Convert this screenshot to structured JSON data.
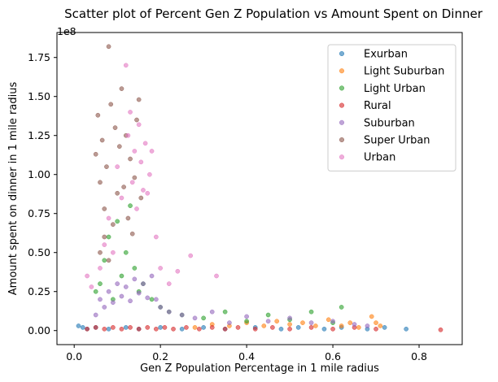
{
  "chart_data": {
    "type": "scatter",
    "title": "Scatter plot of Percent Gen Z Population vs Amount Spent on Dinner",
    "xlabel": "Gen Z Population Percentage in 1 mile radius",
    "ylabel": "Amount spent on dinner in 1 mile radius",
    "y_offset_text": "1e8",
    "xlim": [
      -0.04,
      0.9
    ],
    "ylim": [
      -0.09,
      1.91
    ],
    "y_unit_multiplier": 100000000,
    "xticks": [
      0.0,
      0.2,
      0.4,
      0.6,
      0.8
    ],
    "xtick_labels": [
      "0.0",
      "0.2",
      "0.4",
      "0.6",
      "0.8"
    ],
    "yticks": [
      0.0,
      0.25,
      0.5,
      0.75,
      1.0,
      1.25,
      1.5,
      1.75
    ],
    "ytick_labels": [
      "0.00",
      "0.25",
      "0.50",
      "0.75",
      "1.00",
      "1.25",
      "1.50",
      "1.75"
    ],
    "grid": false,
    "legend_position": "top-right",
    "series": [
      {
        "name": "Exurban",
        "color": "#1f77b4",
        "points": [
          [
            0.01,
            0.03
          ],
          [
            0.02,
            0.02
          ],
          [
            0.03,
            0.01
          ],
          [
            0.05,
            0.02
          ],
          [
            0.08,
            0.01
          ],
          [
            0.12,
            0.02
          ],
          [
            0.15,
            0.01
          ],
          [
            0.2,
            0.02
          ],
          [
            0.25,
            0.01
          ],
          [
            0.3,
            0.02
          ],
          [
            0.35,
            0.01
          ],
          [
            0.42,
            0.02
          ],
          [
            0.48,
            0.01
          ],
          [
            0.52,
            0.02
          ],
          [
            0.58,
            0.01
          ],
          [
            0.62,
            0.02
          ],
          [
            0.68,
            0.01
          ],
          [
            0.72,
            0.02
          ],
          [
            0.77,
            0.01
          ]
        ]
      },
      {
        "name": "Light Suburban",
        "color": "#ff7f0e",
        "points": [
          [
            0.28,
            0.02
          ],
          [
            0.32,
            0.04
          ],
          [
            0.36,
            0.03
          ],
          [
            0.4,
            0.05
          ],
          [
            0.44,
            0.03
          ],
          [
            0.47,
            0.06
          ],
          [
            0.5,
            0.04
          ],
          [
            0.53,
            0.05
          ],
          [
            0.56,
            0.03
          ],
          [
            0.59,
            0.07
          ],
          [
            0.62,
            0.03
          ],
          [
            0.64,
            0.05
          ],
          [
            0.66,
            0.02
          ],
          [
            0.69,
            0.09
          ],
          [
            0.7,
            0.05
          ],
          [
            0.71,
            0.03
          ]
        ]
      },
      {
        "name": "Light Urban",
        "color": "#2ca02c",
        "points": [
          [
            0.05,
            0.25
          ],
          [
            0.06,
            0.3
          ],
          [
            0.07,
            0.45
          ],
          [
            0.08,
            0.6
          ],
          [
            0.09,
            0.2
          ],
          [
            0.1,
            0.7
          ],
          [
            0.11,
            0.35
          ],
          [
            0.12,
            0.5
          ],
          [
            0.13,
            0.8
          ],
          [
            0.14,
            0.4
          ],
          [
            0.15,
            0.25
          ],
          [
            0.16,
            0.3
          ],
          [
            0.18,
            0.2
          ],
          [
            0.2,
            0.15
          ],
          [
            0.22,
            0.12
          ],
          [
            0.25,
            0.1
          ],
          [
            0.3,
            0.08
          ],
          [
            0.35,
            0.12
          ],
          [
            0.4,
            0.06
          ],
          [
            0.45,
            0.1
          ],
          [
            0.5,
            0.07
          ],
          [
            0.55,
            0.12
          ],
          [
            0.6,
            0.05
          ],
          [
            0.62,
            0.15
          ]
        ]
      },
      {
        "name": "Rural",
        "color": "#d62728",
        "points": [
          [
            0.03,
            0.01
          ],
          [
            0.05,
            0.02
          ],
          [
            0.07,
            0.01
          ],
          [
            0.09,
            0.02
          ],
          [
            0.11,
            0.01
          ],
          [
            0.13,
            0.02
          ],
          [
            0.15,
            0.01
          ],
          [
            0.17,
            0.02
          ],
          [
            0.19,
            0.01
          ],
          [
            0.21,
            0.02
          ],
          [
            0.23,
            0.01
          ],
          [
            0.26,
            0.02
          ],
          [
            0.29,
            0.01
          ],
          [
            0.32,
            0.02
          ],
          [
            0.35,
            0.01
          ],
          [
            0.38,
            0.02
          ],
          [
            0.42,
            0.01
          ],
          [
            0.46,
            0.02
          ],
          [
            0.5,
            0.01
          ],
          [
            0.55,
            0.02
          ],
          [
            0.6,
            0.01
          ],
          [
            0.65,
            0.02
          ],
          [
            0.7,
            0.01
          ],
          [
            0.85,
            0.005
          ]
        ]
      },
      {
        "name": "Suburban",
        "color": "#9467bd",
        "points": [
          [
            0.05,
            0.1
          ],
          [
            0.06,
            0.2
          ],
          [
            0.07,
            0.15
          ],
          [
            0.08,
            0.25
          ],
          [
            0.09,
            0.18
          ],
          [
            0.1,
            0.3
          ],
          [
            0.11,
            0.22
          ],
          [
            0.12,
            0.28
          ],
          [
            0.13,
            0.19
          ],
          [
            0.14,
            0.33
          ],
          [
            0.15,
            0.24
          ],
          [
            0.16,
            0.3
          ],
          [
            0.17,
            0.21
          ],
          [
            0.18,
            0.35
          ],
          [
            0.19,
            0.2
          ],
          [
            0.2,
            0.15
          ],
          [
            0.22,
            0.12
          ],
          [
            0.25,
            0.1
          ],
          [
            0.28,
            0.08
          ],
          [
            0.32,
            0.12
          ],
          [
            0.36,
            0.05
          ],
          [
            0.4,
            0.09
          ],
          [
            0.45,
            0.06
          ],
          [
            0.5,
            0.08
          ],
          [
            0.55,
            0.05
          ],
          [
            0.6,
            0.06
          ],
          [
            0.65,
            0.04
          ],
          [
            0.68,
            0.03
          ]
        ]
      },
      {
        "name": "Super Urban",
        "color": "#8c564b",
        "points": [
          [
            0.05,
            1.13
          ],
          [
            0.055,
            1.38
          ],
          [
            0.06,
            0.95
          ],
          [
            0.065,
            1.22
          ],
          [
            0.07,
            0.78
          ],
          [
            0.075,
            1.05
          ],
          [
            0.08,
            1.82
          ],
          [
            0.085,
            1.45
          ],
          [
            0.09,
            0.68
          ],
          [
            0.095,
            1.3
          ],
          [
            0.1,
            0.88
          ],
          [
            0.105,
            1.18
          ],
          [
            0.11,
            1.55
          ],
          [
            0.115,
            0.92
          ],
          [
            0.12,
            1.25
          ],
          [
            0.125,
            0.72
          ],
          [
            0.13,
            1.1
          ],
          [
            0.135,
            0.62
          ],
          [
            0.14,
            0.98
          ],
          [
            0.145,
            1.35
          ],
          [
            0.15,
            1.48
          ],
          [
            0.155,
            0.85
          ],
          [
            0.06,
            0.5
          ],
          [
            0.07,
            0.6
          ],
          [
            0.08,
            0.45
          ]
        ]
      },
      {
        "name": "Urban",
        "color": "#e377c2",
        "points": [
          [
            0.06,
            0.4
          ],
          [
            0.07,
            0.55
          ],
          [
            0.08,
            0.72
          ],
          [
            0.09,
            0.5
          ],
          [
            0.1,
            1.05
          ],
          [
            0.11,
            0.85
          ],
          [
            0.12,
            1.7
          ],
          [
            0.125,
            1.25
          ],
          [
            0.13,
            1.4
          ],
          [
            0.135,
            0.95
          ],
          [
            0.14,
            1.15
          ],
          [
            0.145,
            0.78
          ],
          [
            0.15,
            1.32
          ],
          [
            0.155,
            1.08
          ],
          [
            0.16,
            0.9
          ],
          [
            0.165,
            1.2
          ],
          [
            0.17,
            0.88
          ],
          [
            0.175,
            1.0
          ],
          [
            0.18,
            1.15
          ],
          [
            0.19,
            0.6
          ],
          [
            0.2,
            0.4
          ],
          [
            0.22,
            0.3
          ],
          [
            0.24,
            0.38
          ],
          [
            0.27,
            0.48
          ],
          [
            0.33,
            0.35
          ],
          [
            0.03,
            0.35
          ],
          [
            0.04,
            0.28
          ]
        ]
      }
    ]
  }
}
